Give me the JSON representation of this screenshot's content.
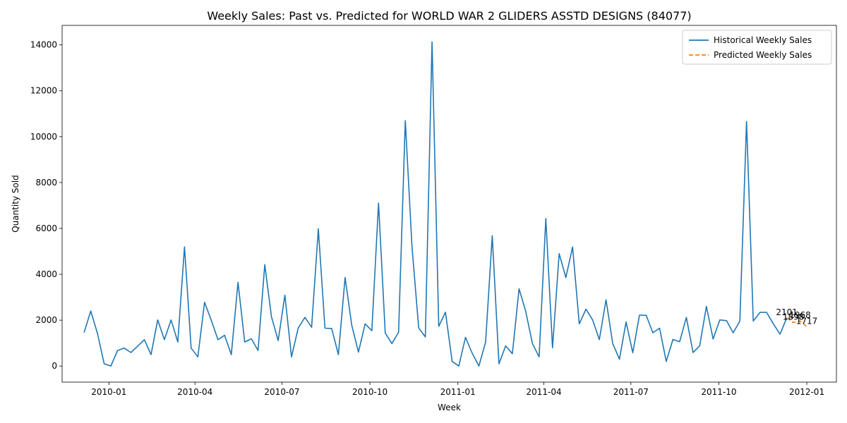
{
  "chart_data": {
    "type": "line",
    "title": "Weekly Sales: Past vs. Predicted for WORLD WAR 2 GLIDERS ASSTD DESIGNS (84077)",
    "xlabel": "Week",
    "ylabel": "Quantity Sold",
    "xlim": [
      "2009-11-13",
      "2012-02-01"
    ],
    "ylim": [
      -700,
      14850
    ],
    "x_ticks": [
      "2010-01-01",
      "2010-04-01",
      "2010-07-01",
      "2010-10-01",
      "2011-01-01",
      "2011-04-01",
      "2011-07-01",
      "2011-10-01",
      "2012-01-01"
    ],
    "x_tick_labels": [
      "2010-01",
      "2010-04",
      "2010-07",
      "2010-10",
      "2011-01",
      "2011-04",
      "2011-07",
      "2011-10",
      "2012-01"
    ],
    "y_ticks": [
      0,
      2000,
      4000,
      6000,
      8000,
      10000,
      12000,
      14000
    ],
    "y_tick_labels": [
      "0",
      "2000",
      "4000",
      "6000",
      "8000",
      "10000",
      "12000",
      "14000"
    ],
    "grid": false,
    "legend_position": "top-right",
    "series": [
      {
        "name": "Historical Weekly Sales",
        "color": "#1f77b4",
        "style": "solid",
        "start_date": "2009-12-06",
        "interval_days": 7,
        "values": [
          1460,
          2400,
          1420,
          100,
          0,
          680,
          780,
          590,
          870,
          1150,
          500,
          2010,
          1150,
          2010,
          1050,
          5190,
          780,
          400,
          2780,
          2000,
          1150,
          1340,
          500,
          3650,
          1050,
          1190,
          680,
          4420,
          2150,
          1110,
          3090,
          400,
          1660,
          2120,
          1690,
          5980,
          1650,
          1640,
          500,
          3860,
          1770,
          610,
          1840,
          1540,
          7100,
          1440,
          980,
          1470,
          10700,
          5200,
          1660,
          1270,
          14130,
          1730,
          2350,
          200,
          0,
          1250,
          560,
          0,
          1050,
          5680,
          100,
          880,
          540,
          3370,
          2390,
          980,
          400,
          6430,
          790,
          4900,
          3860,
          5190,
          1840,
          2480,
          2010,
          1150,
          2890,
          980,
          300,
          1920,
          580,
          2220,
          2210,
          1450,
          1650,
          200,
          1160,
          1060,
          2120,
          590,
          880,
          2600,
          1180,
          2010,
          1980,
          1450,
          1960,
          10660,
          1960,
          2340,
          2340,
          1840,
          1390,
          2100
        ]
      },
      {
        "name": "Predicted Weekly Sales",
        "color": "#ff7f0e",
        "style": "dashed",
        "points": [
          {
            "x": "2011-12-11",
            "y": 2101
          },
          {
            "x": "2011-12-18",
            "y": 1898
          },
          {
            "x": "2011-12-25",
            "y": 1968
          },
          {
            "x": "2012-01-01",
            "y": 1717
          }
        ]
      }
    ],
    "annotations": [
      "2101",
      "1898",
      "1968",
      "1717"
    ]
  }
}
